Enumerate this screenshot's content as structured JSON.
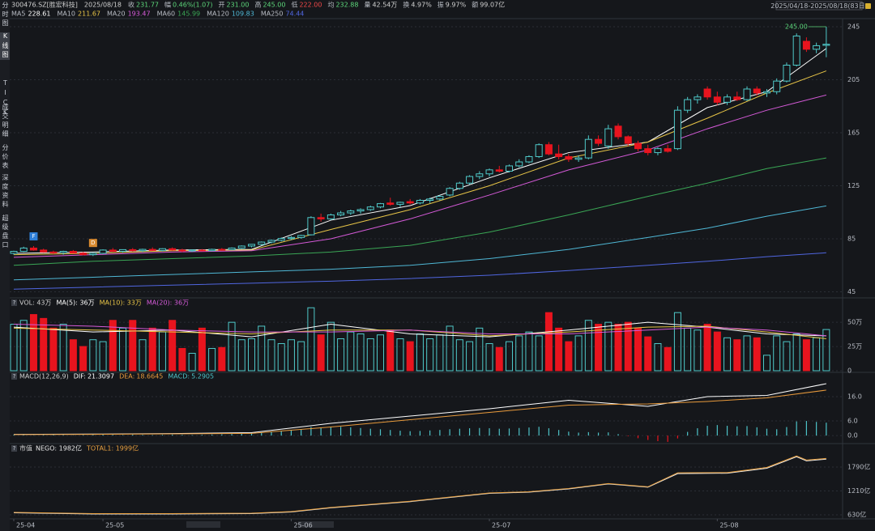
{
  "header": {
    "code": "300476.SZ[胜宏科技]",
    "date": "2025/08/18",
    "quote": [
      {
        "label": "收",
        "value": "231.77",
        "color": "#5cd67a"
      },
      {
        "label": "幅",
        "value": "0.46%(1.07)",
        "color": "#5cd67a"
      },
      {
        "label": "开",
        "value": "231.00",
        "color": "#5cd67a"
      },
      {
        "label": "高",
        "value": "245.00",
        "color": "#5cd67a"
      },
      {
        "label": "低",
        "value": "222.00",
        "color": "#f04848"
      },
      {
        "label": "均",
        "value": "232.88",
        "color": "#5cd67a"
      },
      {
        "label": "量",
        "value": "42.54万",
        "color": "#d0d0d0"
      },
      {
        "label": "换",
        "value": "4.97%",
        "color": "#d0d0d0"
      },
      {
        "label": "振",
        "value": "9.97%",
        "color": "#d0d0d0"
      },
      {
        "label": "额",
        "value": "99.07亿",
        "color": "#d0d0d0"
      }
    ],
    "range": "2025/04/18-2025/08/18(83日)"
  },
  "tabs": [
    "分时图",
    "K线图",
    "TICK",
    "成交明细",
    "分价表",
    "深度资料",
    "超级盘口"
  ],
  "help_icon": "?",
  "chart_data": [
    {
      "type": "candlestick",
      "categories": [
        "25-04",
        null,
        null,
        null,
        null,
        null,
        null,
        null,
        null,
        "25-05",
        null,
        null,
        null,
        null,
        null,
        null,
        null,
        null,
        null,
        null,
        null,
        null,
        null,
        null,
        null,
        null,
        null,
        null,
        "25-06",
        null,
        null,
        null,
        null,
        null,
        null,
        null,
        null,
        null,
        null,
        null,
        null,
        null,
        null,
        null,
        null,
        null,
        null,
        null,
        "25-07",
        null,
        null,
        null,
        null,
        null,
        null,
        null,
        null,
        null,
        null,
        null,
        null,
        null,
        null,
        null,
        null,
        null,
        null,
        null,
        null,
        null,
        null,
        "25-08",
        null,
        null,
        null,
        null,
        null,
        null,
        null,
        null,
        null,
        null,
        null
      ],
      "ohlc": [
        [
          74,
          76,
          73,
          75.5
        ],
        [
          75.5,
          79,
          75,
          78
        ],
        [
          78,
          79.5,
          76,
          76.5
        ],
        [
          76.5,
          77.5,
          74.5,
          75
        ],
        [
          75,
          76,
          73.5,
          74.5
        ],
        [
          74.5,
          76,
          73,
          75.5
        ],
        [
          75.5,
          76.5,
          74,
          74.2
        ],
        [
          74.2,
          75,
          72.5,
          73
        ],
        [
          73,
          74.5,
          72,
          74
        ],
        [
          74,
          77,
          73.5,
          76.5
        ],
        [
          76.5,
          78,
          75,
          75.5
        ],
        [
          75.5,
          77,
          74.5,
          76.8
        ],
        [
          76.8,
          78,
          75.5,
          76
        ],
        [
          76,
          77.5,
          75,
          77
        ],
        [
          77,
          78.5,
          76,
          76.2
        ],
        [
          76.2,
          77.8,
          75.5,
          77.5
        ],
        [
          77.5,
          78.5,
          76,
          76.5
        ],
        [
          76.5,
          77.5,
          75,
          75.8
        ],
        [
          75.8,
          77,
          75,
          76.5
        ],
        [
          76.5,
          77.2,
          75.5,
          76
        ],
        [
          76,
          77.5,
          75.5,
          77
        ],
        [
          77,
          78,
          76,
          76.8
        ],
        [
          76.8,
          78.5,
          76.5,
          78
        ],
        [
          78,
          80,
          77.5,
          79.5
        ],
        [
          79.5,
          81,
          78.5,
          80.8
        ],
        [
          80.8,
          83,
          80,
          82.5
        ],
        [
          82.5,
          84.5,
          81.5,
          83.8
        ],
        [
          83.8,
          86,
          83,
          85.2
        ],
        [
          85.2,
          87,
          84,
          86
        ],
        [
          86,
          88,
          85,
          87.5
        ],
        [
          88,
          102,
          87.5,
          101
        ],
        [
          101,
          104,
          98,
          100
        ],
        [
          100,
          104,
          99,
          103
        ],
        [
          103,
          106,
          102,
          104.5
        ],
        [
          104.5,
          107,
          103,
          106
        ],
        [
          106,
          108,
          104,
          107
        ],
        [
          107,
          110,
          106,
          109
        ],
        [
          109,
          112,
          108,
          111.5
        ],
        [
          112,
          116,
          110,
          111
        ],
        [
          111,
          113,
          109,
          112.5
        ],
        [
          113,
          115,
          111,
          112
        ],
        [
          112,
          115,
          111,
          114
        ],
        [
          114,
          116,
          112,
          115
        ],
        [
          115,
          118,
          114,
          117
        ],
        [
          118,
          124,
          117,
          123
        ],
        [
          123,
          128,
          122,
          127
        ],
        [
          127,
          133,
          126,
          132
        ],
        [
          132,
          136,
          130,
          134
        ],
        [
          134,
          138,
          132,
          137
        ],
        [
          137,
          140,
          135,
          136
        ],
        [
          136,
          141,
          135,
          140
        ],
        [
          140,
          145,
          139,
          143
        ],
        [
          143,
          148,
          142,
          147
        ],
        [
          147,
          157,
          146,
          156
        ],
        [
          156,
          158,
          148,
          149
        ],
        [
          149,
          156,
          145,
          147
        ],
        [
          147,
          149,
          143,
          145
        ],
        [
          145,
          148,
          143,
          146
        ],
        [
          146,
          163,
          145,
          160
        ],
        [
          160,
          163,
          155,
          157
        ],
        [
          155,
          171,
          153,
          168
        ],
        [
          170,
          172,
          160,
          162
        ],
        [
          162,
          163,
          155,
          157
        ],
        [
          157,
          159,
          151,
          153
        ],
        [
          153,
          156,
          148,
          150
        ],
        [
          150,
          154,
          148,
          153
        ],
        [
          153,
          156,
          150,
          151
        ],
        [
          153,
          185,
          152,
          182
        ],
        [
          182,
          192,
          180,
          190
        ],
        [
          190,
          194,
          187,
          192
        ],
        [
          198,
          200,
          190,
          192
        ],
        [
          192,
          196,
          186,
          188
        ],
        [
          188,
          194,
          186,
          192
        ],
        [
          192,
          196,
          189,
          190
        ],
        [
          190,
          200,
          189,
          198
        ],
        [
          198,
          200,
          193,
          195
        ],
        [
          195,
          198,
          192,
          196
        ],
        [
          196,
          206,
          194,
          204
        ],
        [
          204,
          218,
          203,
          216
        ],
        [
          216,
          240,
          215,
          238
        ],
        [
          234,
          237,
          226,
          228
        ],
        [
          228,
          233,
          225,
          230.7
        ],
        [
          231,
          245,
          222,
          231.77
        ]
      ],
      "up_color": "#4fc9c9",
      "down_color": "#e8141e",
      "ylim": [
        40.4,
        249.9
      ],
      "yticks": [
        45,
        85,
        125,
        165,
        205,
        245
      ],
      "grid": true,
      "ma": {
        "x": [
          0,
          8,
          16,
          24,
          32,
          40,
          48,
          56,
          64,
          70,
          76,
          82
        ],
        "series": [
          {
            "name": "MA5",
            "color": "#ffffff",
            "values": [
              74,
              75,
              76.5,
              77,
              99,
              110,
              131,
              150,
              158,
              184,
              196,
              228.61
            ]
          },
          {
            "name": "MA10",
            "color": "#e8c547",
            "values": [
              73,
              74,
              76,
              76.5,
              92,
              107,
              125,
              146,
              158,
              176,
              195,
              211.67
            ]
          },
          {
            "name": "MA20",
            "color": "#d55ad8",
            "values": [
              71,
              73,
              75,
              76,
              85,
              100,
              118,
              137,
              152,
              168,
              182,
              193.47
            ]
          },
          {
            "name": "MA60",
            "color": "#3aa655",
            "values": [
              65,
              68,
              70,
              72,
              75,
              80,
              90,
              103,
              117,
              127,
              138,
              145.99
            ]
          },
          {
            "name": "MA120",
            "color": "#4fb8d6",
            "values": [
              54,
              56,
              58,
              60,
              62,
              65,
              70,
              77,
              86,
              93,
              102,
              109.83
            ]
          },
          {
            "name": "MA250",
            "color": "#5066e0",
            "values": [
              47,
              48.5,
              50,
              51.5,
              53,
              55,
              57.5,
              61,
              65,
              68,
              71.5,
              74.44
            ]
          }
        ]
      },
      "markers": [
        {
          "label": "F",
          "x": 2,
          "color": "#2f7fd8"
        },
        {
          "label": "D",
          "x": 8,
          "color": "#d88a2f"
        }
      ],
      "high_label": "245.00"
    },
    {
      "type": "volume",
      "title": "VOL: 43万",
      "values": [
        48,
        52,
        58,
        54,
        44,
        48,
        32,
        25,
        32,
        30,
        52,
        44,
        52,
        32,
        44,
        40,
        52,
        23,
        18,
        44,
        23,
        24,
        50,
        32,
        33,
        46,
        32,
        28,
        32,
        30,
        65,
        37,
        50,
        33,
        40,
        38,
        33,
        37,
        42,
        33,
        30,
        38,
        33,
        37,
        46,
        32,
        30,
        44,
        28,
        24,
        30,
        36,
        40,
        36,
        60,
        44,
        30,
        36,
        52,
        48,
        50,
        48,
        50,
        44,
        35,
        28,
        24,
        60,
        44,
        42,
        48,
        40,
        34,
        32,
        36,
        34,
        16,
        36,
        30,
        38,
        32,
        34,
        42.54
      ],
      "ylim": [
        0,
        66
      ],
      "yticks": [
        0,
        {
          "value": 25,
          "label": "25万"
        },
        {
          "value": 50,
          "label": "50万"
        }
      ],
      "ma": {
        "x": [
          0,
          8,
          16,
          24,
          32,
          40,
          48,
          56,
          64,
          70,
          76,
          82
        ],
        "series": [
          {
            "name": "MA(5): 36万",
            "color": "#ffffff",
            "values": [
              45,
              40,
              42,
              35,
              48,
              38,
              35,
              42,
              50,
              45,
              38,
              36
            ]
          },
          {
            "name": "MA(10): 33万",
            "color": "#e8c547",
            "values": [
              44,
              42,
              40,
              38,
              42,
              42,
              36,
              40,
              45,
              46,
              40,
              33
            ]
          },
          {
            "name": "MA(20): 36万",
            "color": "#d55ad8",
            "values": [
              48,
              46,
              42,
              40,
              40,
              42,
              38,
              38,
              42,
              45,
              42,
              36
            ]
          }
        ]
      }
    },
    {
      "type": "macd",
      "title": "MACD(12,26,9)",
      "x": [
        0,
        8,
        16,
        24,
        32,
        40,
        48,
        56,
        64,
        70,
        76,
        82
      ],
      "series": [
        {
          "name": "DIF:",
          "color": "#ffffff",
          "values": [
            0.5,
            0.6,
            0.8,
            1.2,
            5,
            8,
            11,
            14.5,
            12,
            16,
            16.5,
            21.3097
          ]
        },
        {
          "name": "DEA:",
          "color": "#e89a3c",
          "values": [
            0.4,
            0.5,
            0.7,
            0.9,
            3.5,
            6.5,
            9.5,
            12.5,
            13,
            14,
            15.5,
            18.6645
          ]
        }
      ],
      "histogram": {
        "name": "MACD:",
        "color": "#4dc3c8",
        "negative_color": "#e8141e",
        "values": [
          0.3,
          0.2,
          0.1,
          0.2,
          0.3,
          0.2,
          0.1,
          0.2,
          0.3,
          0.4,
          0.3,
          0.2,
          0.4,
          0.3,
          0.2,
          0.3,
          0.4,
          0.3,
          0.2,
          0.3,
          0.4,
          0.5,
          0.6,
          0.8,
          1.0,
          1.3,
          1.6,
          1.9,
          2.2,
          2.6,
          3.5,
          3.3,
          3.4,
          3.6,
          3.4,
          3.1,
          2.8,
          2.6,
          2.3,
          2.0,
          1.8,
          1.9,
          2.1,
          2.3,
          2.6,
          2.8,
          3.0,
          3.1,
          3.0,
          2.8,
          2.9,
          3.1,
          3.3,
          3.6,
          3.0,
          2.3,
          1.6,
          1.2,
          1.4,
          1.2,
          1.3,
          0.6,
          -0.3,
          -1.1,
          -1.8,
          -2.3,
          -2.6,
          -1.2,
          1.5,
          3.0,
          4.0,
          4.3,
          4.0,
          3.8,
          3.9,
          3.4,
          2.8,
          2.6,
          3.5,
          5.8,
          6.0,
          5.6,
          5.2905
        ]
      },
      "ylim": [
        -3.3,
        23.3
      ],
      "yticks": [
        {
          "value": 0,
          "label": "0.0"
        },
        {
          "value": 6,
          "label": "6.0"
        },
        {
          "value": 16,
          "label": "16.0"
        }
      ]
    },
    {
      "type": "line",
      "title": "市值",
      "x": [
        0,
        8,
        16,
        24,
        28,
        32,
        40,
        48,
        52,
        56,
        60,
        64,
        67,
        72,
        76,
        79,
        80,
        82
      ],
      "series": [
        {
          "name": "NEGO: 1982亿",
          "color": "#e8e8e8",
          "values": [
            680,
            650,
            650,
            660,
            700,
            800,
            950,
            1150,
            1180,
            1260,
            1380,
            1300,
            1630,
            1640,
            1760,
            2040,
            1940,
            1982
          ]
        },
        {
          "name": "TOTAL1: 1999亿",
          "color": "#e8a040",
          "values": [
            690,
            660,
            660,
            670,
            710,
            810,
            960,
            1160,
            1190,
            1270,
            1390,
            1310,
            1650,
            1655,
            1780,
            2060,
            1960,
            1999
          ]
        }
      ],
      "ylim": [
        532,
        2222
      ],
      "yticks": [
        {
          "value": 630,
          "label": "630亿"
        },
        {
          "value": 1210,
          "label": "1210亿"
        },
        {
          "value": 1790,
          "label": "1790亿"
        }
      ]
    }
  ]
}
